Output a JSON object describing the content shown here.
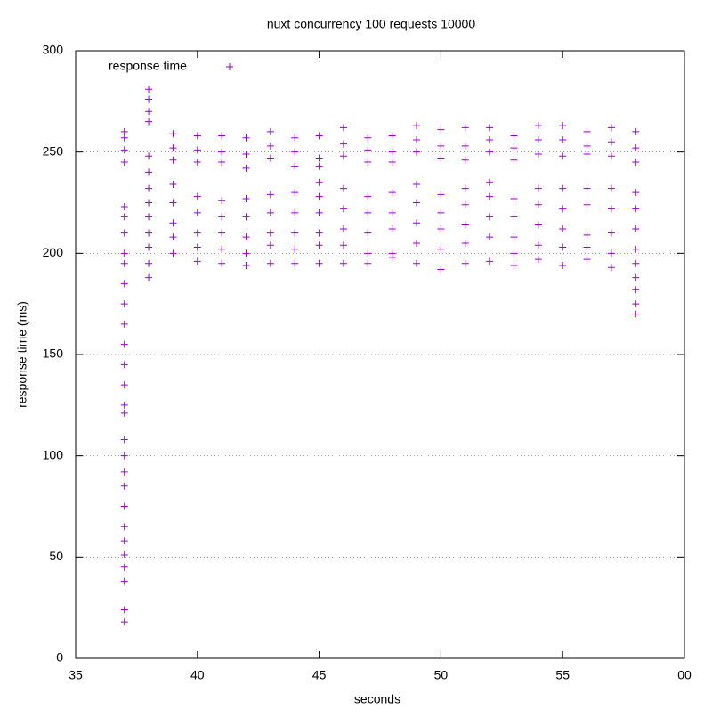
{
  "chart_data": {
    "type": "scatter",
    "title": "nuxt concurrency 100 requests 10000",
    "xlabel": "seconds",
    "ylabel": "response time (ms)",
    "xlim": [
      35,
      60
    ],
    "ylim": [
      0,
      300
    ],
    "xticks": [
      35,
      40,
      45,
      50,
      55,
      {
        "value": 60,
        "label": "00"
      }
    ],
    "yticks": [
      0,
      50,
      100,
      150,
      200,
      250,
      300
    ],
    "grid": "y",
    "legend": "top-left",
    "series": [
      {
        "name": "response time",
        "color": "#9400d3",
        "x": [
          37,
          37,
          37,
          37,
          37,
          37,
          37,
          37,
          37,
          37,
          37,
          37,
          37,
          37,
          37,
          37,
          37,
          37,
          37,
          37,
          37,
          37,
          37,
          37,
          37,
          37,
          37,
          37,
          37,
          38,
          38,
          38,
          38,
          38,
          38,
          38,
          38,
          38,
          38,
          38,
          38,
          38,
          39,
          39,
          39,
          39,
          39,
          39,
          39,
          39,
          40,
          40,
          40,
          40,
          40,
          40,
          40,
          40,
          41,
          41,
          41,
          41,
          41,
          41,
          41,
          41,
          42,
          42,
          42,
          42,
          42,
          42,
          42,
          42,
          43,
          43,
          43,
          43,
          43,
          43,
          43,
          43,
          44,
          44,
          44,
          44,
          44,
          44,
          44,
          44,
          45,
          45,
          45,
          45,
          45,
          45,
          45,
          45,
          45,
          46,
          46,
          46,
          46,
          46,
          46,
          46,
          46,
          47,
          47,
          47,
          47,
          47,
          47,
          47,
          47,
          48,
          48,
          48,
          48,
          48,
          48,
          48,
          48,
          49,
          49,
          49,
          49,
          49,
          49,
          49,
          49,
          50,
          50,
          50,
          50,
          50,
          50,
          50,
          50,
          51,
          51,
          51,
          51,
          51,
          51,
          51,
          51,
          52,
          52,
          52,
          52,
          52,
          52,
          52,
          52,
          53,
          53,
          53,
          53,
          53,
          53,
          53,
          53,
          54,
          54,
          54,
          54,
          54,
          54,
          54,
          54,
          55,
          55,
          55,
          55,
          55,
          55,
          55,
          55,
          56,
          56,
          56,
          56,
          56,
          56,
          56,
          56,
          57,
          57,
          57,
          57,
          57,
          57,
          57,
          57,
          58,
          58,
          58,
          58,
          58,
          58,
          58,
          58,
          58,
          58,
          58,
          58
        ],
        "y": [
          260,
          257,
          251,
          245,
          223,
          218,
          210,
          200,
          195,
          185,
          175,
          165,
          155,
          145,
          135,
          125,
          121,
          108,
          100,
          92,
          85,
          75,
          65,
          58,
          51,
          45,
          38,
          24,
          18,
          281,
          276,
          270,
          265,
          248,
          240,
          232,
          225,
          218,
          210,
          203,
          195,
          188,
          259,
          252,
          246,
          234,
          225,
          215,
          208,
          200,
          258,
          251,
          245,
          228,
          220,
          210,
          203,
          196,
          258,
          250,
          245,
          226,
          218,
          210,
          202,
          195,
          257,
          249,
          242,
          227,
          218,
          208,
          200,
          194,
          260,
          253,
          247,
          229,
          220,
          210,
          204,
          195,
          257,
          250,
          243,
          230,
          220,
          210,
          202,
          195,
          258,
          247,
          243,
          235,
          228,
          220,
          210,
          204,
          195,
          262,
          254,
          248,
          232,
          222,
          212,
          204,
          195,
          257,
          251,
          245,
          228,
          220,
          210,
          200,
          195,
          258,
          250,
          245,
          230,
          220,
          212,
          200,
          198,
          263,
          256,
          250,
          234,
          225,
          215,
          205,
          195,
          261,
          253,
          247,
          229,
          220,
          212,
          202,
          192,
          262,
          253,
          246,
          232,
          224,
          214,
          205,
          195,
          262,
          256,
          250,
          235,
          228,
          218,
          208,
          196,
          258,
          252,
          246,
          227,
          218,
          208,
          200,
          194,
          263,
          256,
          249,
          232,
          224,
          214,
          204,
          197,
          263,
          256,
          248,
          232,
          222,
          212,
          203,
          194,
          260,
          253,
          249,
          232,
          224,
          209,
          203,
          197,
          262,
          255,
          248,
          232,
          222,
          210,
          200,
          193,
          260,
          252,
          245,
          230,
          222,
          212,
          202,
          195,
          188,
          182,
          175,
          170
        ]
      }
    ]
  }
}
